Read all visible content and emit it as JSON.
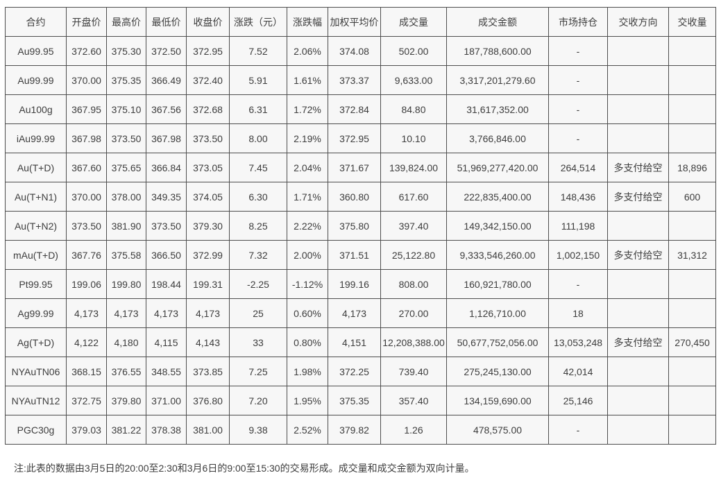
{
  "table": {
    "columns": [
      "合约",
      "开盘价",
      "最高价",
      "最低价",
      "收盘价",
      "涨跌（元）",
      "涨跌幅",
      "加权平均价",
      "成交量",
      "成交金额",
      "市场持仓",
      "交收方向",
      "交收量"
    ],
    "rows": [
      [
        "Au99.95",
        "372.60",
        "375.30",
        "372.50",
        "372.95",
        "7.52",
        "2.06%",
        "374.08",
        "502.00",
        "187,788,600.00",
        "-",
        "",
        ""
      ],
      [
        "Au99.99",
        "370.00",
        "375.35",
        "366.49",
        "372.40",
        "5.91",
        "1.61%",
        "373.37",
        "9,633.00",
        "3,317,201,279.60",
        "-",
        "",
        ""
      ],
      [
        "Au100g",
        "367.95",
        "375.10",
        "367.56",
        "372.68",
        "6.31",
        "1.72%",
        "372.84",
        "84.80",
        "31,617,352.00",
        "-",
        "",
        ""
      ],
      [
        "iAu99.99",
        "367.98",
        "373.50",
        "367.98",
        "373.50",
        "8.00",
        "2.19%",
        "372.95",
        "10.10",
        "3,766,846.00",
        "-",
        "",
        ""
      ],
      [
        "Au(T+D)",
        "367.60",
        "375.65",
        "366.84",
        "373.05",
        "7.45",
        "2.04%",
        "371.67",
        "139,824.00",
        "51,969,277,420.00",
        "264,514",
        "多支付给空",
        "18,896"
      ],
      [
        "Au(T+N1)",
        "370.00",
        "378.00",
        "349.35",
        "374.05",
        "6.30",
        "1.71%",
        "360.80",
        "617.60",
        "222,835,400.00",
        "148,436",
        "多支付给空",
        "600"
      ],
      [
        "Au(T+N2)",
        "373.50",
        "381.90",
        "373.50",
        "379.30",
        "8.25",
        "2.22%",
        "375.80",
        "397.40",
        "149,342,150.00",
        "111,198",
        "",
        ""
      ],
      [
        "mAu(T+D)",
        "367.76",
        "375.58",
        "366.50",
        "372.99",
        "7.32",
        "2.00%",
        "371.51",
        "25,122.80",
        "9,333,546,260.00",
        "1,002,150",
        "多支付给空",
        "31,312"
      ],
      [
        "Pt99.95",
        "199.06",
        "199.80",
        "198.44",
        "199.31",
        "-2.25",
        "-1.12%",
        "199.16",
        "808.00",
        "160,921,780.00",
        "-",
        "",
        ""
      ],
      [
        "Ag99.99",
        "4,173",
        "4,173",
        "4,173",
        "4,173",
        "25",
        "0.60%",
        "4,173",
        "270.00",
        "1,126,710.00",
        "18",
        "",
        ""
      ],
      [
        "Ag(T+D)",
        "4,122",
        "4,180",
        "4,115",
        "4,143",
        "33",
        "0.80%",
        "4,151",
        "12,208,388.00",
        "50,677,752,056.00",
        "13,053,248",
        "多支付给空",
        "270,450"
      ],
      [
        "NYAuTN06",
        "368.15",
        "376.55",
        "348.55",
        "373.85",
        "7.25",
        "1.98%",
        "372.25",
        "739.40",
        "275,245,130.00",
        "42,014",
        "",
        ""
      ],
      [
        "NYAuTN12",
        "372.75",
        "379.80",
        "371.00",
        "376.80",
        "7.20",
        "1.95%",
        "375.35",
        "357.40",
        "134,159,690.00",
        "25,146",
        "",
        ""
      ],
      [
        "PGC30g",
        "379.03",
        "381.22",
        "378.38",
        "381.00",
        "9.38",
        "2.52%",
        "379.82",
        "1.26",
        "478,575.00",
        "-",
        "",
        ""
      ]
    ]
  },
  "note": "注:此表的数据由3月5日的20:00至2:30和3月6日的9:00至15:30的交易形成。成交量和成交金额为双向计量。",
  "colors": {
    "cell_background": "#f7f7f7",
    "border": "#4d4d4d",
    "text": "#3d3d3d",
    "page_background": "#ffffff"
  }
}
